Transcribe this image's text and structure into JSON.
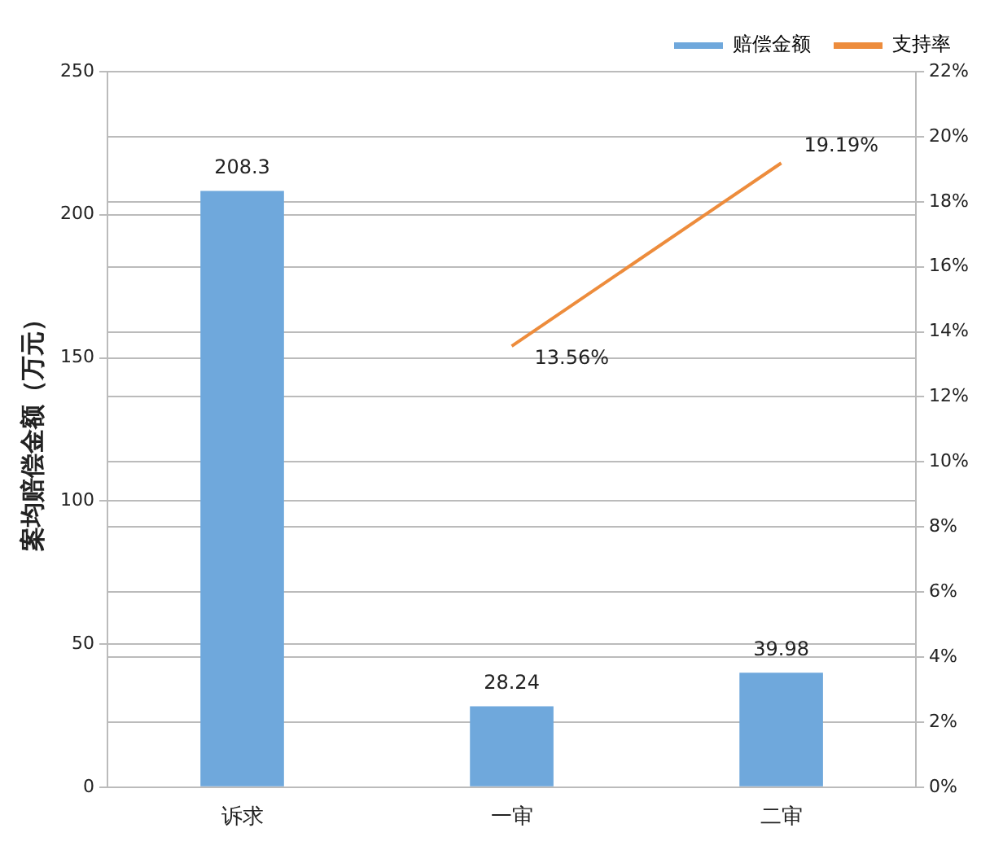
{
  "chart_data": {
    "type": "bar",
    "categories": [
      "诉求",
      "一审",
      "二审"
    ],
    "ylabel": "案均赔偿金额（万元）",
    "series": [
      {
        "name": "赔偿金额",
        "color": "#6fa8dc",
        "values": [
          208.3,
          28.24,
          39.98
        ],
        "value_labels": [
          "208.3",
          "28.24",
          "39.98"
        ]
      },
      {
        "name": "支持率",
        "type": "line",
        "axis": "y2",
        "color": "#ed8c3c",
        "values": [
          null,
          13.56,
          19.19
        ],
        "value_labels": [
          null,
          "13.56%",
          "19.19%"
        ]
      }
    ],
    "ylim": [
      0,
      250
    ],
    "yticks": [
      0,
      50,
      100,
      150,
      200,
      250
    ],
    "y2lim": [
      0,
      22
    ],
    "y2ticks": [
      {
        "value": 0,
        "label": "0%"
      },
      {
        "value": 2,
        "label": "2%"
      },
      {
        "value": 4,
        "label": "4%"
      },
      {
        "value": 6,
        "label": "6%"
      },
      {
        "value": 8,
        "label": "8%"
      },
      {
        "value": 10,
        "label": "10%"
      },
      {
        "value": 12,
        "label": "12%"
      },
      {
        "value": 14,
        "label": "14%"
      },
      {
        "value": 16,
        "label": "16%"
      },
      {
        "value": 18,
        "label": "18%"
      },
      {
        "value": 20,
        "label": "20%"
      },
      {
        "value": 22,
        "label": "22%"
      }
    ],
    "grid": true,
    "legend": "top right",
    "marker": "none",
    "line_style": "solid"
  }
}
